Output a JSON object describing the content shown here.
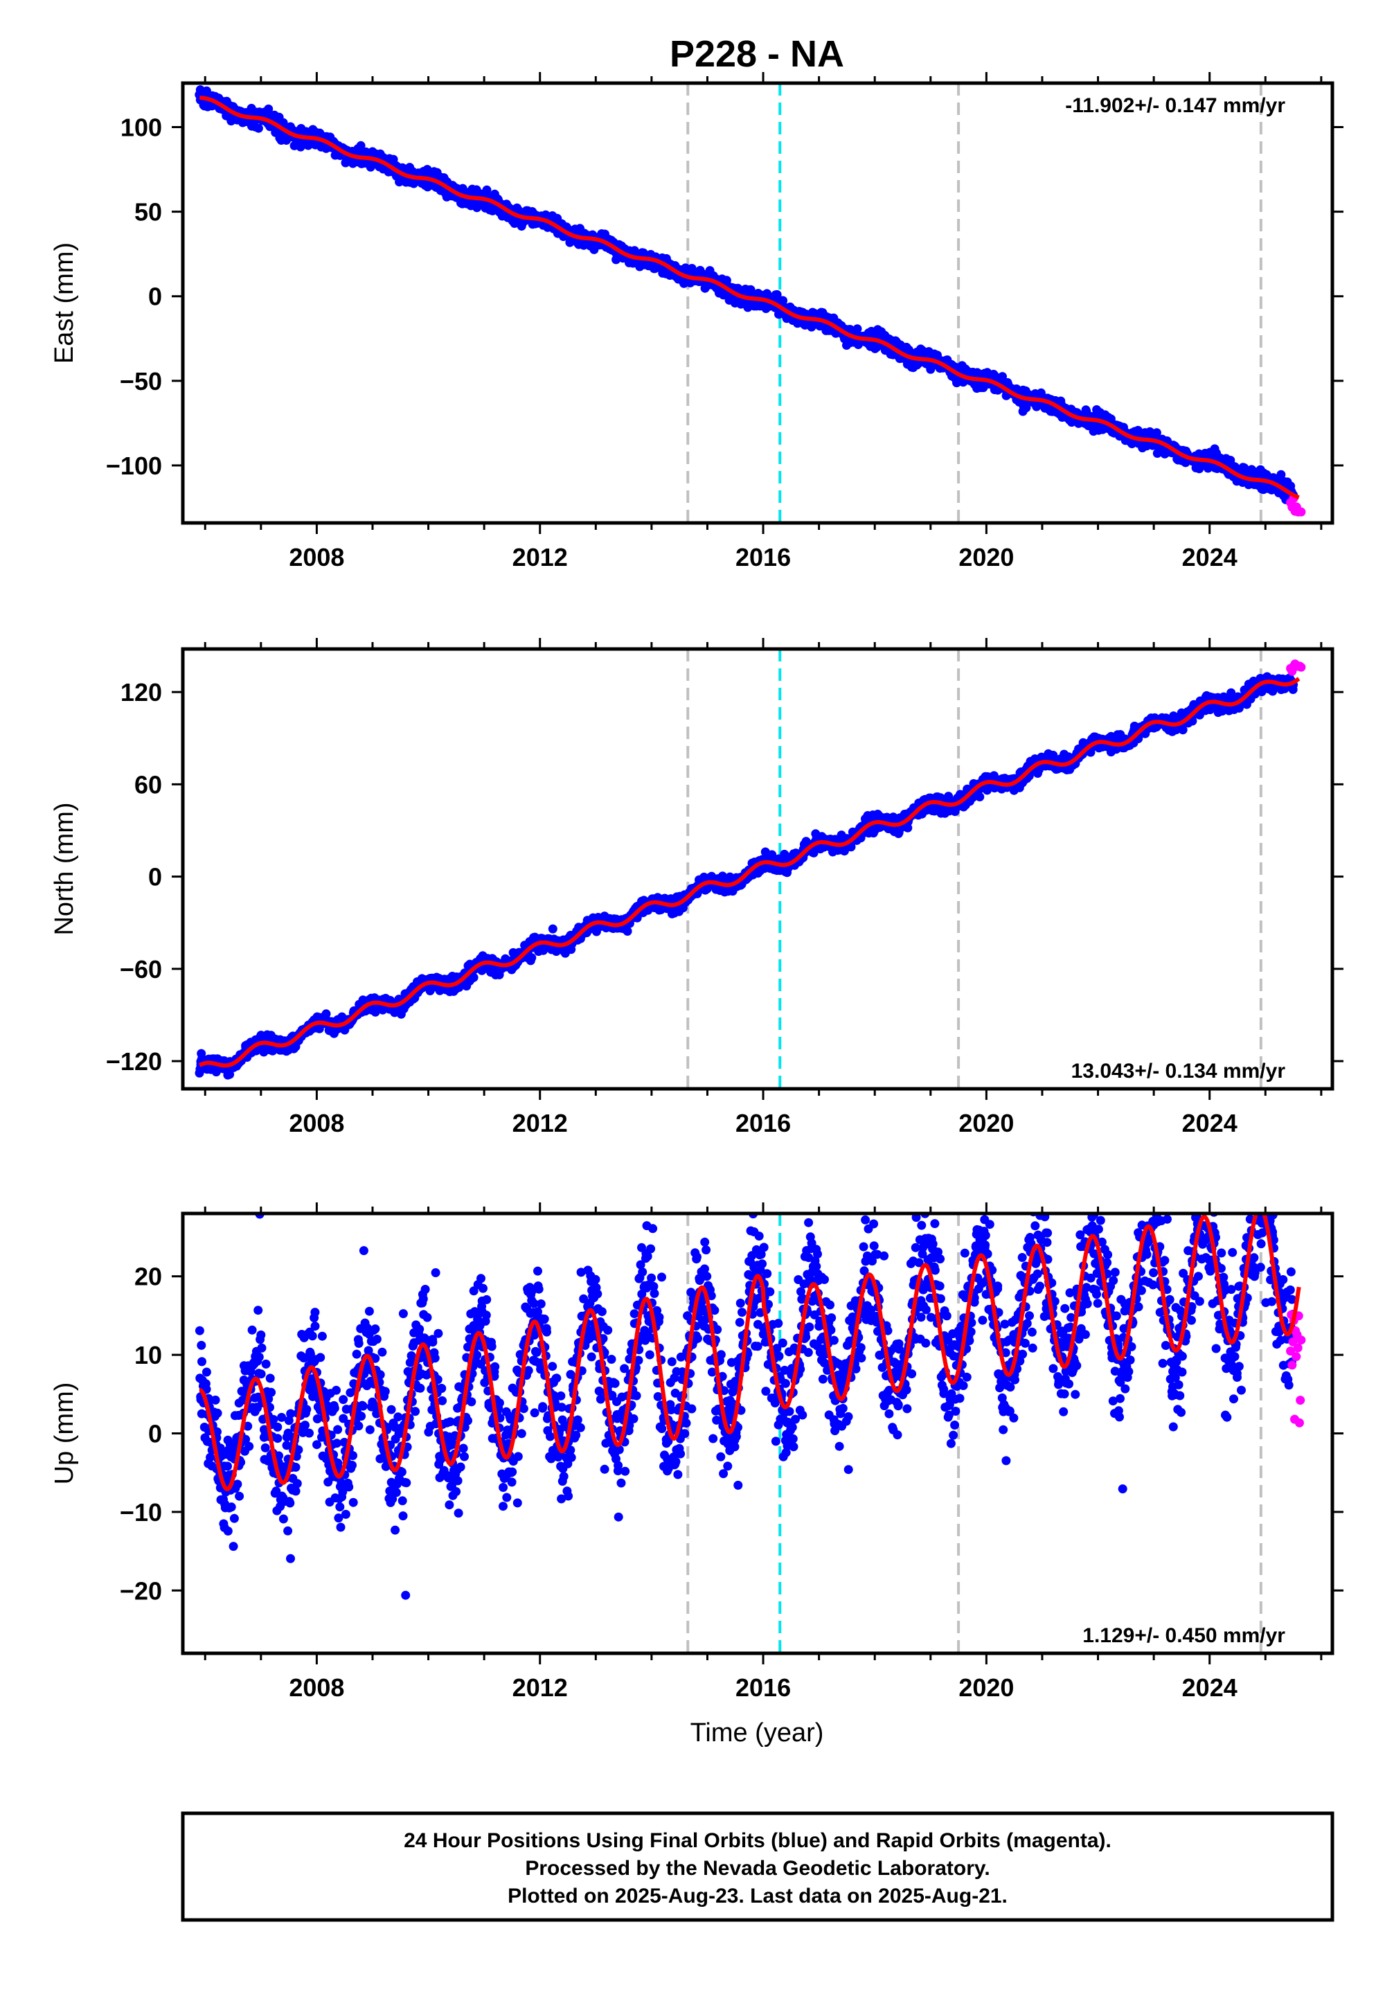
{
  "title": "P228 - NA",
  "x_axis_label": "Time (year)",
  "footer": {
    "line1": "24 Hour Positions Using Final Orbits (blue) and Rapid Orbits (magenta).",
    "line2": "Processed by the Nevada Geodetic Laboratory.",
    "line3": "Plotted on 2025-Aug-23. Last data on 2025-Aug-21."
  },
  "colors": {
    "final_orbits": "#0000ff",
    "rapid_orbits": "#ff00ff",
    "model_fit": "#ff0000",
    "event_line_gray": "#c0c0c0",
    "event_line_cyan": "#00e5ee"
  },
  "chart_data": [
    {
      "type": "scatter",
      "panel": "east",
      "ylabel": "East (mm)",
      "xlim": [
        2005.6,
        2026.2
      ],
      "ylim": [
        -134,
        126
      ],
      "x_ticks": [
        2008,
        2012,
        2016,
        2020,
        2024
      ],
      "y_ticks": [
        100,
        50,
        0,
        -50,
        -100
      ],
      "y_tick_labels": [
        "100",
        "50",
        "0",
        "−50",
        "−100"
      ],
      "rate_label": "-11.902+/- 0.147 mm/yr",
      "rate_label_position": "top-right",
      "trend": {
        "rate_mm_per_yr": -11.902,
        "value_at_start": 117,
        "start_year": 2005.9,
        "annual_amplitude_mm": 1.5,
        "annual_phase": 0.3
      },
      "final_orbits": {
        "x_start": 2005.9,
        "x_end": 2025.5,
        "noise_mm": 2.5
      },
      "rapid_orbits": {
        "x_start": 2025.45,
        "x_end": 2025.64,
        "y_range": [
          -128,
          -118
        ]
      },
      "event_lines": [
        {
          "x": 2014.65,
          "color": "gray"
        },
        {
          "x": 2016.3,
          "color": "cyan"
        },
        {
          "x": 2019.5,
          "color": "gray"
        },
        {
          "x": 2024.92,
          "color": "gray"
        }
      ]
    },
    {
      "type": "scatter",
      "panel": "north",
      "ylabel": "North (mm)",
      "xlim": [
        2005.6,
        2026.2
      ],
      "ylim": [
        -138,
        148
      ],
      "x_ticks": [
        2008,
        2012,
        2016,
        2020,
        2024
      ],
      "y_ticks": [
        120,
        60,
        0,
        -60,
        -120
      ],
      "y_tick_labels": [
        "120",
        "60",
        "0",
        "−60",
        "−120"
      ],
      "rate_label": "13.043+/- 0.134 mm/yr",
      "rate_label_position": "bottom-right",
      "trend": {
        "rate_mm_per_yr": 13.043,
        "value_at_start": -126,
        "start_year": 2005.9,
        "annual_amplitude_mm": 3.5,
        "annual_phase": 1.2
      },
      "final_orbits": {
        "x_start": 2005.9,
        "x_end": 2025.5,
        "noise_mm": 2.5
      },
      "rapid_orbits": {
        "x_start": 2025.45,
        "x_end": 2025.64,
        "y_range": [
          133,
          141
        ]
      },
      "event_lines": [
        {
          "x": 2014.65,
          "color": "gray"
        },
        {
          "x": 2016.3,
          "color": "cyan"
        },
        {
          "x": 2019.5,
          "color": "gray"
        },
        {
          "x": 2024.92,
          "color": "gray"
        }
      ]
    },
    {
      "type": "scatter",
      "panel": "up",
      "ylabel": "Up (mm)",
      "xlim": [
        2005.6,
        2026.2
      ],
      "ylim": [
        -28,
        28
      ],
      "x_ticks": [
        2008,
        2012,
        2016,
        2020,
        2024
      ],
      "y_ticks": [
        20,
        10,
        0,
        -10,
        -20
      ],
      "y_tick_labels": [
        "20",
        "10",
        "0",
        "−10",
        "−20"
      ],
      "rate_label": "1.129+/- 0.450 mm/yr",
      "rate_label_position": "bottom-right",
      "trend": {
        "rate_mm_per_yr": 1.129,
        "value_at_start": -1.0,
        "start_year": 2005.9,
        "annual_amplitude_mm": 6.5,
        "annual_phase": 1.57
      },
      "final_orbits": {
        "x_start": 2005.9,
        "x_end": 2025.5,
        "noise_mm": 3.8
      },
      "rapid_orbits": {
        "x_start": 2025.45,
        "x_end": 2025.64,
        "y_range": [
          1,
          18
        ]
      },
      "event_lines": [
        {
          "x": 2014.65,
          "color": "gray"
        },
        {
          "x": 2016.3,
          "color": "cyan"
        },
        {
          "x": 2019.5,
          "color": "gray"
        },
        {
          "x": 2024.92,
          "color": "gray"
        }
      ]
    }
  ]
}
